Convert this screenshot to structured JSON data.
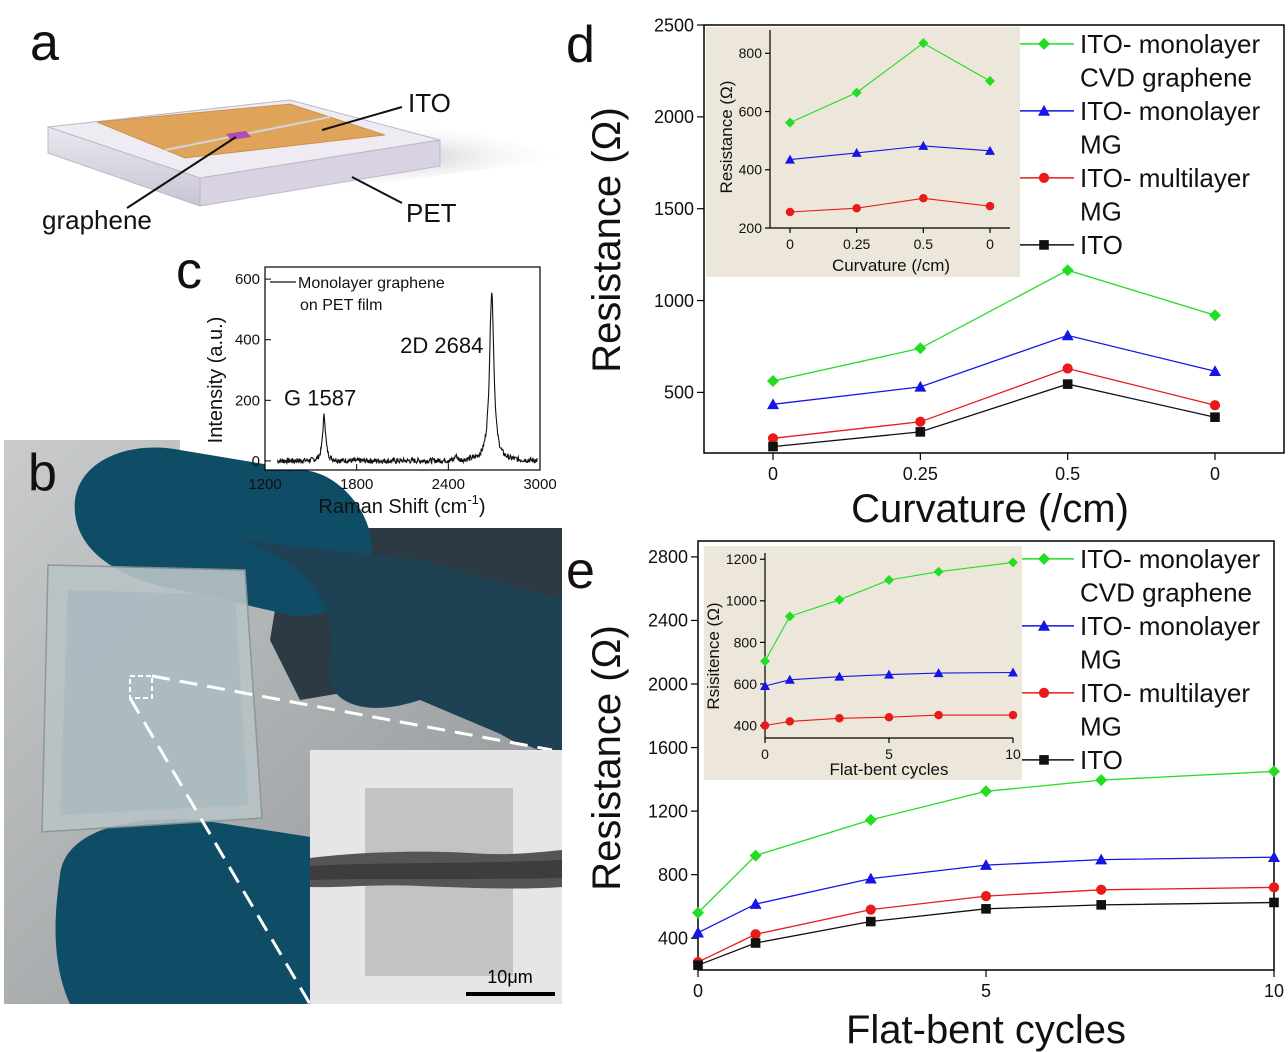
{
  "panels": {
    "a": {
      "letter": "a",
      "labels": {
        "ito": "ITO",
        "graphene": "graphene",
        "pet": "PET"
      },
      "colors": {
        "ito": "#e0a35a",
        "pet": "#e4e0ea",
        "graphene": "#b04bb8"
      }
    },
    "b": {
      "letter": "b",
      "scalebar": "10μm"
    },
    "c": {
      "letter": "c",
      "chart_data": {
        "type": "line",
        "xlabel": "Raman Shift (cm",
        "xlabel_sup": "-1",
        "xlabel_tail": ")",
        "ylabel": "Intensity (a.u.)",
        "xlim": [
          1200,
          3000
        ],
        "ylim": [
          -30,
          640
        ],
        "xticks": [
          1200,
          1800,
          2400,
          3000
        ],
        "yticks": [
          0,
          200,
          400,
          600
        ],
        "legend": [
          "Monolayer graphene",
          "on PET film"
        ],
        "annotations": [
          {
            "text": "G 1587",
            "x": 1587,
            "y": 150
          },
          {
            "text": "2D 2684",
            "x": 2684,
            "y": 560
          }
        ],
        "peaks": [
          {
            "center": 1587,
            "height": 150,
            "width": 12
          },
          {
            "center": 2684,
            "height": 560,
            "width": 17
          }
        ]
      }
    },
    "d": {
      "letter": "d",
      "chart_data": {
        "type": "line",
        "xlabel": "Curvature (/cm)",
        "ylabel": "Resistance (Ω)",
        "categories": [
          "0",
          "0.25",
          "0.5",
          "0"
        ],
        "ylim": [
          170,
          2500
        ],
        "yticks": [
          500,
          1000,
          1500,
          2000,
          2500
        ],
        "legend": [
          "ITO- monolayer",
          "CVD graphene",
          "ITO- monolayer",
          "MG",
          "ITO- multilayer",
          "MG",
          "ITO"
        ],
        "series": [
          {
            "color": "#22dd22",
            "marker": "diamond",
            "values": [
              562,
              740,
              1165,
              920
            ]
          },
          {
            "color": "#1515e6",
            "marker": "triangle",
            "values": [
              435,
              530,
              810,
              615
            ]
          },
          {
            "color": "#e81a1a",
            "marker": "circle",
            "values": [
              250,
              340,
              630,
              430
            ]
          },
          {
            "color": "#111111",
            "marker": "square",
            "values": [
              205,
              285,
              545,
              365
            ]
          }
        ],
        "inset": {
          "xlabel": "Curvature (/cm)",
          "ylabel": "Resistance (Ω)",
          "categories": [
            "0",
            "0.25",
            "0.5",
            "0"
          ],
          "ylim": [
            200,
            880
          ],
          "yticks": [
            200,
            400,
            600,
            800
          ],
          "series": [
            {
              "color": "#22dd22",
              "marker": "diamond",
              "values": [
                562,
                665,
                835,
                705
              ]
            },
            {
              "color": "#1515e6",
              "marker": "triangle",
              "values": [
                435,
                458,
                482,
                465
              ]
            },
            {
              "color": "#e81a1a",
              "marker": "circle",
              "values": [
                255,
                268,
                302,
                275
              ]
            }
          ]
        }
      }
    },
    "e": {
      "letter": "e",
      "chart_data": {
        "type": "line",
        "xlabel": "Flat-bent cycles",
        "ylabel": "Resistance (Ω)",
        "x": [
          0,
          1,
          3,
          5,
          7,
          10
        ],
        "xlim": [
          0,
          10
        ],
        "xticks": [
          0,
          5,
          10
        ],
        "ylim": [
          200,
          2900
        ],
        "yticks": [
          400,
          800,
          1200,
          1600,
          2000,
          2400,
          2800
        ],
        "legend": [
          "ITO- monolayer",
          "CVD graphene",
          "ITO- monolayer",
          "MG",
          "ITO- multilayer",
          "MG",
          "ITO"
        ],
        "series": [
          {
            "color": "#22dd22",
            "marker": "diamond",
            "values": [
              560,
              920,
              1145,
              1325,
              1395,
              1450
            ]
          },
          {
            "color": "#1515e6",
            "marker": "triangle",
            "values": [
              435,
              615,
              775,
              860,
              895,
              910
            ]
          },
          {
            "color": "#e81a1a",
            "marker": "circle",
            "values": [
              250,
              425,
              580,
              665,
              705,
              720
            ]
          },
          {
            "color": "#111111",
            "marker": "square",
            "values": [
              230,
              370,
              505,
              585,
              610,
              625
            ]
          }
        ],
        "inset": {
          "xlabel": "Flat-bent cycles",
          "ylabel": "Rsisitence (Ω)",
          "x": [
            0,
            1,
            3,
            5,
            7,
            10
          ],
          "xlim": [
            0,
            10
          ],
          "xticks": [
            0,
            5,
            10
          ],
          "ylim": [
            340,
            1230
          ],
          "yticks": [
            400,
            600,
            800,
            1000,
            1200
          ],
          "series": [
            {
              "color": "#22dd22",
              "marker": "diamond",
              "values": [
                710,
                925,
                1005,
                1100,
                1140,
                1185
              ]
            },
            {
              "color": "#1515e6",
              "marker": "triangle",
              "values": [
                590,
                620,
                635,
                645,
                652,
                655
              ]
            },
            {
              "color": "#e81a1a",
              "marker": "circle",
              "values": [
                400,
                420,
                435,
                440,
                450,
                450
              ]
            }
          ]
        }
      }
    }
  }
}
